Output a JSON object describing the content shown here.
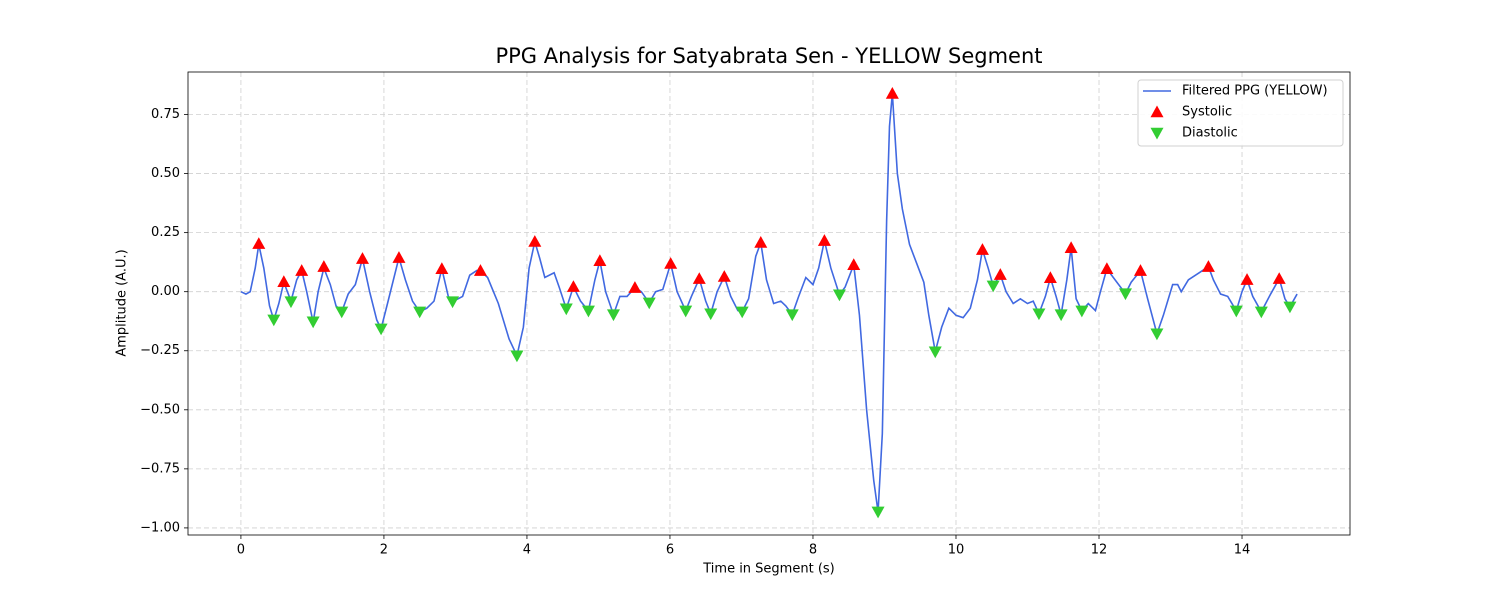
{
  "chart_data": {
    "type": "line",
    "title": "PPG Analysis for Satyabrata Sen - YELLOW Segment",
    "xlabel": "Time in Segment (s)",
    "ylabel": "Amplitude (A.U.)",
    "xlim": [
      -0.74,
      15.51
    ],
    "ylim": [
      -1.03,
      0.93
    ],
    "xticks": [
      0,
      2,
      4,
      6,
      8,
      10,
      12,
      14
    ],
    "yticks": [
      {
        "value": -1.0,
        "label": "−1.00"
      },
      {
        "value": -0.75,
        "label": "−0.75"
      },
      {
        "value": -0.5,
        "label": "−0.50"
      },
      {
        "value": -0.25,
        "label": "−0.25"
      },
      {
        "value": 0.0,
        "label": "0.00"
      },
      {
        "value": 0.25,
        "label": "0.25"
      },
      {
        "value": 0.5,
        "label": "0.50"
      },
      {
        "value": 0.75,
        "label": "0.75"
      }
    ],
    "grid": true,
    "legend": "upper right",
    "series": [
      {
        "name": "Filtered PPG (YELLOW)",
        "type": "line",
        "color": "#4169e1",
        "x": [
          0.0,
          0.07,
          0.13,
          0.2,
          0.25,
          0.32,
          0.4,
          0.46,
          0.53,
          0.6,
          0.65,
          0.7,
          0.78,
          0.85,
          0.92,
          1.01,
          1.08,
          1.16,
          1.25,
          1.33,
          1.41,
          1.5,
          1.6,
          1.7,
          1.8,
          1.9,
          1.96,
          2.05,
          2.21,
          2.3,
          2.4,
          2.5,
          2.6,
          2.7,
          2.81,
          2.9,
          2.96,
          3.1,
          3.2,
          3.3,
          3.35,
          3.45,
          3.6,
          3.75,
          3.86,
          3.95,
          4.03,
          4.11,
          4.18,
          4.25,
          4.38,
          4.45,
          4.55,
          4.65,
          4.75,
          4.86,
          4.95,
          5.02,
          5.1,
          5.21,
          5.3,
          5.4,
          5.51,
          5.6,
          5.71,
          5.8,
          5.9,
          6.01,
          6.1,
          6.22,
          6.3,
          6.41,
          6.5,
          6.57,
          6.66,
          6.76,
          6.85,
          6.95,
          7.01,
          7.1,
          7.2,
          7.27,
          7.35,
          7.45,
          7.55,
          7.62,
          7.71,
          7.8,
          7.9,
          8.0,
          8.08,
          8.16,
          8.25,
          8.37,
          8.45,
          8.57,
          8.65,
          8.75,
          8.85,
          8.91,
          8.97,
          9.03,
          9.07,
          9.11,
          9.18,
          9.25,
          9.35,
          9.45,
          9.55,
          9.62,
          9.71,
          9.8,
          9.9,
          10.0,
          10.1,
          10.2,
          10.3,
          10.37,
          10.45,
          10.52,
          10.62,
          10.7,
          10.8,
          10.9,
          11.0,
          11.08,
          11.16,
          11.25,
          11.32,
          11.4,
          11.47,
          11.55,
          11.61,
          11.68,
          11.76,
          11.85,
          11.95,
          12.02,
          12.11,
          12.2,
          12.3,
          12.37,
          12.45,
          12.58,
          12.68,
          12.81,
          12.9,
          13.03,
          13.1,
          13.15,
          13.25,
          13.4,
          13.53,
          13.6,
          13.7,
          13.8,
          13.92,
          14.0,
          14.07,
          14.15,
          14.27,
          14.4,
          14.52,
          14.6,
          14.67,
          14.77
        ],
        "values": [
          0.0,
          -0.01,
          0.0,
          0.1,
          0.2,
          0.1,
          -0.06,
          -0.12,
          -0.05,
          0.04,
          0.0,
          -0.04,
          0.05,
          0.09,
          0.0,
          -0.13,
          0.0,
          0.1,
          0.03,
          -0.06,
          -0.085,
          -0.01,
          0.03,
          0.14,
          0.0,
          -0.12,
          -0.157,
          -0.05,
          0.144,
          0.05,
          -0.04,
          -0.085,
          -0.07,
          -0.04,
          0.097,
          -0.02,
          -0.042,
          -0.02,
          0.07,
          0.09,
          0.089,
          0.06,
          -0.05,
          -0.2,
          -0.271,
          -0.15,
          0.1,
          0.212,
          0.14,
          0.06,
          0.08,
          0.02,
          -0.072,
          0.021,
          -0.04,
          -0.081,
          0.05,
          0.131,
          0.0,
          -0.097,
          -0.02,
          -0.02,
          0.017,
          0.0,
          -0.047,
          0.0,
          0.01,
          0.119,
          0.0,
          -0.081,
          -0.02,
          0.055,
          -0.04,
          -0.093,
          0.0,
          0.064,
          -0.02,
          -0.08,
          -0.085,
          -0.03,
          0.15,
          0.208,
          0.05,
          -0.05,
          -0.04,
          -0.06,
          -0.097,
          -0.02,
          0.06,
          0.03,
          0.1,
          0.216,
          0.1,
          -0.013,
          0.02,
          0.114,
          -0.1,
          -0.5,
          -0.8,
          -0.932,
          -0.6,
          0.3,
          0.7,
          0.839,
          0.5,
          0.35,
          0.2,
          0.12,
          0.04,
          -0.1,
          -0.254,
          -0.15,
          -0.07,
          -0.1,
          -0.11,
          -0.07,
          0.05,
          0.178,
          0.1,
          0.025,
          0.072,
          0.0,
          -0.05,
          -0.03,
          -0.05,
          -0.04,
          -0.093,
          -0.02,
          0.059,
          -0.02,
          -0.097,
          0.05,
          0.186,
          -0.03,
          -0.081,
          -0.05,
          -0.08,
          0.0,
          0.097,
          0.06,
          0.02,
          -0.008,
          0.04,
          0.089,
          -0.03,
          -0.178,
          -0.1,
          0.03,
          0.03,
          0.0,
          0.05,
          0.08,
          0.106,
          0.05,
          -0.01,
          -0.02,
          -0.081,
          0.0,
          0.051,
          -0.02,
          -0.085,
          -0.01,
          0.055,
          -0.03,
          -0.064,
          -0.01
        ]
      },
      {
        "name": "Systolic",
        "type": "scatter",
        "marker": "^",
        "color": "#ff0000",
        "x": [
          0.25,
          0.6,
          0.85,
          1.16,
          1.7,
          2.21,
          2.81,
          3.35,
          4.11,
          4.65,
          5.02,
          5.51,
          6.01,
          6.41,
          6.76,
          7.27,
          8.16,
          8.57,
          9.11,
          10.37,
          10.62,
          11.32,
          11.61,
          12.11,
          12.58,
          13.53,
          14.07,
          14.52
        ],
        "values": [
          0.203,
          0.042,
          0.089,
          0.106,
          0.14,
          0.144,
          0.097,
          0.089,
          0.212,
          0.021,
          0.131,
          0.017,
          0.119,
          0.055,
          0.064,
          0.208,
          0.216,
          0.114,
          0.839,
          0.178,
          0.072,
          0.059,
          0.186,
          0.097,
          0.089,
          0.106,
          0.051,
          0.055
        ]
      },
      {
        "name": "Diastolic",
        "type": "scatter",
        "marker": "v",
        "color": "#32cd32",
        "x": [
          0.46,
          0.7,
          1.01,
          1.41,
          1.96,
          2.5,
          2.96,
          3.86,
          4.55,
          4.86,
          5.21,
          5.71,
          6.22,
          6.57,
          7.01,
          7.71,
          8.37,
          8.91,
          9.71,
          10.52,
          11.16,
          11.47,
          11.76,
          12.37,
          12.81,
          13.92,
          14.27,
          14.67
        ],
        "values": [
          -0.119,
          -0.042,
          -0.127,
          -0.085,
          -0.157,
          -0.085,
          -0.042,
          -0.271,
          -0.072,
          -0.081,
          -0.097,
          -0.047,
          -0.081,
          -0.093,
          -0.085,
          -0.097,
          -0.013,
          -0.932,
          -0.254,
          0.025,
          -0.093,
          -0.097,
          -0.081,
          -0.008,
          -0.178,
          -0.081,
          -0.085,
          -0.064
        ]
      }
    ]
  }
}
